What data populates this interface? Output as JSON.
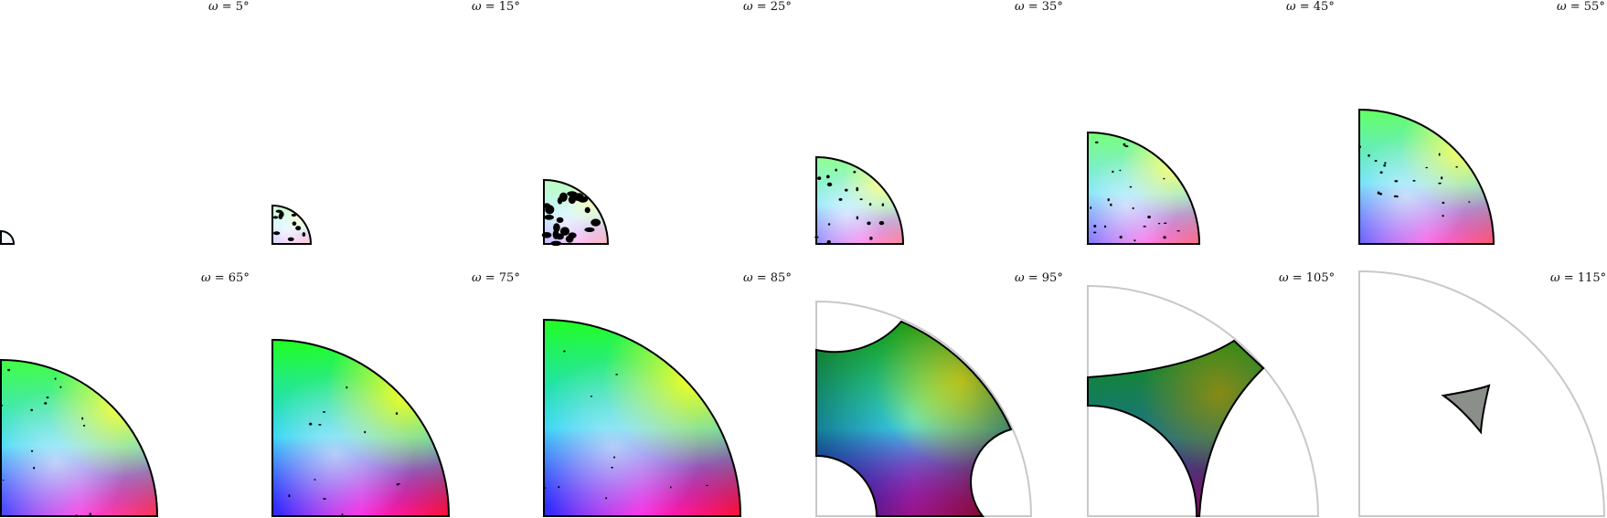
{
  "panels": [
    {
      "omega": "5",
      "label_prefix": "ω = ",
      "label_suffix": "°"
    },
    {
      "omega": "15",
      "label_prefix": "ω = ",
      "label_suffix": "°"
    },
    {
      "omega": "25",
      "label_prefix": "ω = ",
      "label_suffix": "°"
    },
    {
      "omega": "35",
      "label_prefix": "ω = ",
      "label_suffix": "°"
    },
    {
      "omega": "45",
      "label_prefix": "ω = ",
      "label_suffix": "°"
    },
    {
      "omega": "55",
      "label_prefix": "ω = ",
      "label_suffix": "°"
    },
    {
      "omega": "65",
      "label_prefix": "ω = ",
      "label_suffix": "°"
    },
    {
      "omega": "75",
      "label_prefix": "ω = ",
      "label_suffix": "°"
    },
    {
      "omega": "85",
      "label_prefix": "ω = ",
      "label_suffix": "°"
    },
    {
      "omega": "95",
      "label_prefix": "ω = ",
      "label_suffix": "°"
    },
    {
      "omega": "105",
      "label_prefix": "ω = ",
      "label_suffix": "°"
    },
    {
      "omega": "115",
      "label_prefix": "ω = ",
      "label_suffix": "°"
    }
  ],
  "colors": {
    "outline": "#000000",
    "ghost_outline": "#c8c8c8",
    "grain_marks": "#000000"
  }
}
